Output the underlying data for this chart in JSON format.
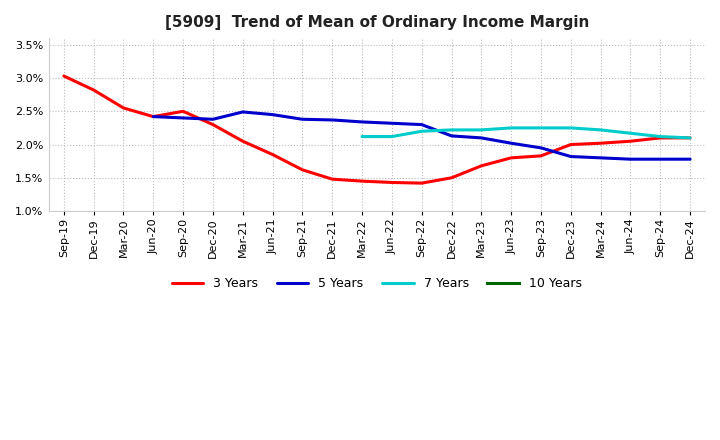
{
  "title": "[5909]  Trend of Mean of Ordinary Income Margin",
  "x_labels": [
    "Sep-19",
    "Dec-19",
    "Mar-20",
    "Jun-20",
    "Sep-20",
    "Dec-20",
    "Mar-21",
    "Jun-21",
    "Sep-21",
    "Dec-21",
    "Mar-22",
    "Jun-22",
    "Sep-22",
    "Dec-22",
    "Mar-23",
    "Jun-23",
    "Sep-23",
    "Dec-23",
    "Mar-24",
    "Jun-24",
    "Sep-24",
    "Dec-24"
  ],
  "series_order": [
    "3 Years",
    "5 Years",
    "7 Years",
    "10 Years"
  ],
  "series": {
    "3 Years": {
      "color": "#FF0000",
      "data_x": [
        0,
        1,
        2,
        3,
        4,
        5,
        6,
        7,
        8,
        9,
        10,
        11,
        12,
        13,
        14,
        15,
        16,
        17,
        18,
        19,
        20,
        21
      ],
      "data_y": [
        3.03,
        2.82,
        2.55,
        2.42,
        2.5,
        2.3,
        2.05,
        1.85,
        1.62,
        1.48,
        1.45,
        1.43,
        1.42,
        1.5,
        1.68,
        1.8,
        1.83,
        2.0,
        2.02,
        2.05,
        2.1,
        2.1
      ]
    },
    "5 Years": {
      "color": "#0000CC",
      "data_x": [
        3,
        4,
        5,
        6,
        7,
        8,
        9,
        10,
        11,
        12,
        13,
        14,
        15,
        16,
        17,
        18,
        19,
        20,
        21
      ],
      "data_y": [
        2.42,
        2.4,
        2.38,
        2.49,
        2.45,
        2.38,
        2.37,
        2.34,
        2.32,
        2.3,
        2.13,
        2.1,
        2.02,
        1.95,
        1.82,
        1.8,
        1.78,
        1.78,
        1.78
      ]
    },
    "7 Years": {
      "color": "#00CCCC",
      "data_x": [
        10,
        11,
        12,
        13,
        14,
        15,
        16,
        17,
        18,
        19,
        20,
        21
      ],
      "data_y": [
        2.12,
        2.12,
        2.2,
        2.22,
        2.22,
        2.25,
        2.25,
        2.25,
        2.22,
        2.17,
        2.12,
        2.1
      ]
    },
    "10 Years": {
      "color": "#006600",
      "data_x": [],
      "data_y": []
    }
  },
  "ylim": [
    1.0,
    3.6
  ],
  "yticks": [
    1.0,
    1.5,
    2.0,
    2.5,
    3.0,
    3.5
  ],
  "background_color": "#ffffff",
  "grid_color": "#bbbbbb",
  "line_width": 2.2,
  "title_fontsize": 11,
  "tick_fontsize": 8,
  "legend_fontsize": 9
}
